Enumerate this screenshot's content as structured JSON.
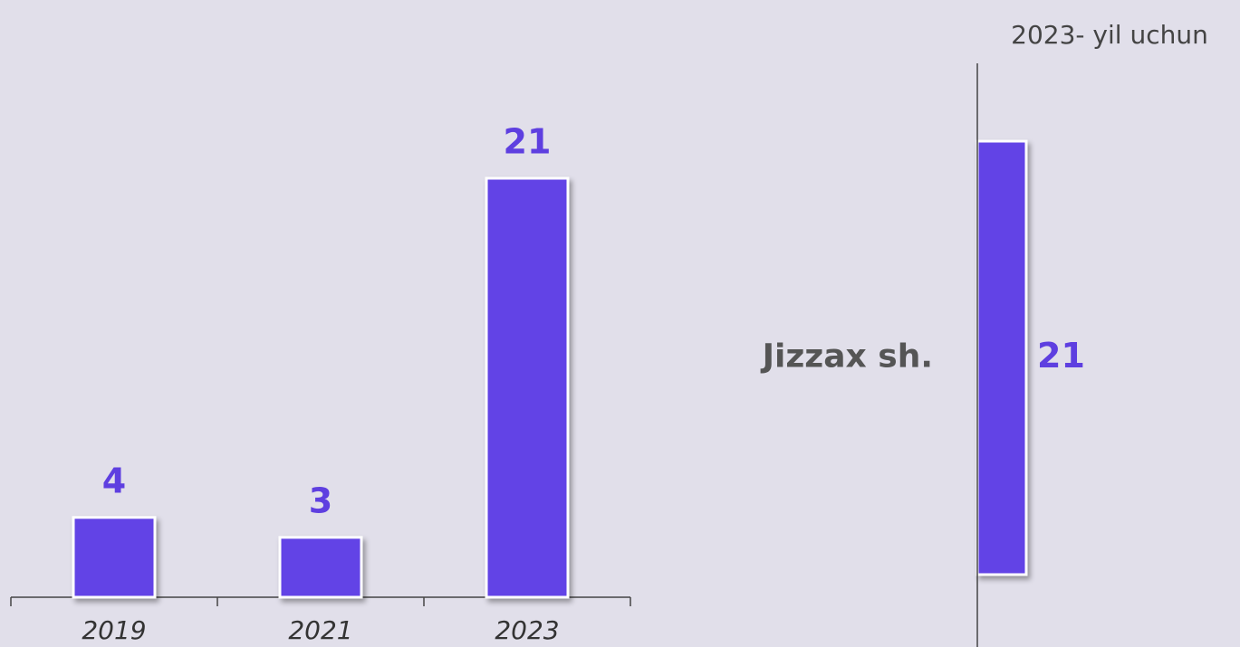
{
  "chart_data": [
    {
      "type": "bar",
      "categories": [
        "2019",
        "2021",
        "2023"
      ],
      "values": [
        4,
        3,
        21
      ],
      "color": "#6243e6",
      "ylim": [
        0,
        21
      ]
    },
    {
      "type": "hbar",
      "title": "2023- yil uchun",
      "categories": [
        "Jizzax sh."
      ],
      "values": [
        21
      ],
      "color": "#6243e6",
      "xlim": [
        0,
        21
      ]
    }
  ]
}
